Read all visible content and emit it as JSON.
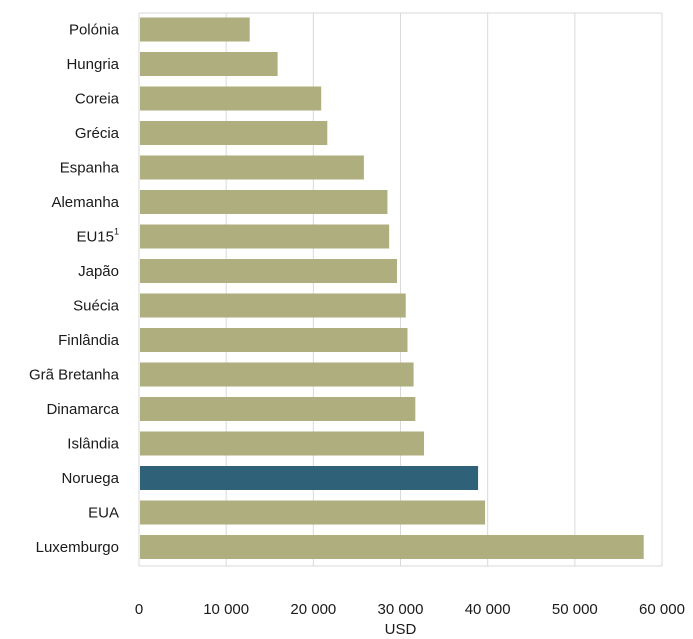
{
  "chart_data": {
    "type": "bar",
    "orientation": "horizontal",
    "categories": [
      "Polónia",
      "Hungria",
      "Coreia",
      "Grécia",
      "Espanha",
      "Alemanha",
      "EU15",
      "Japão",
      "Suécia",
      "Finlândia",
      "Grã Bretanha",
      "Dinamarca",
      "Islândia",
      "Noruega",
      "EUA",
      "Luxemburgo"
    ],
    "category_superscripts": {
      "EU15": "1"
    },
    "values": [
      12700,
      15900,
      20900,
      21600,
      25800,
      28500,
      28700,
      29600,
      30600,
      30800,
      31500,
      31700,
      32700,
      38900,
      39700,
      57900
    ],
    "xlim": [
      0,
      60000
    ],
    "xticks": [
      0,
      10000,
      20000,
      30000,
      40000,
      50000,
      60000
    ],
    "xtick_labels": [
      "0",
      "10 000",
      "20 000",
      "30 000",
      "40 000",
      "50 000",
      "60 000"
    ],
    "xlabel": "USD",
    "ylabel": "",
    "title": "",
    "grid": true,
    "highlight_category": "Noruega",
    "colors": {
      "bar": "#aeae7e",
      "highlight": "#2f6178",
      "grid": "#d9d9d9",
      "frame": "#d9d9d9"
    }
  }
}
